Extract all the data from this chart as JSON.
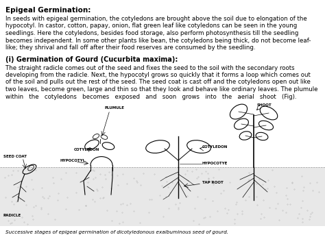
{
  "title": "Epigeal Germination:",
  "para1_lines": [
    "In seeds with epigeal germination, the cotyledons are brought above the soil due to elongation of the",
    "hypocotyl. In castor, cotton, papay, onion, flat green leaf like cotyledons can be seen in the young",
    "seedlings. Here the cotyledons, besides food storage, also perform photosynthesis till the seedling",
    "becomes independent. In some other plants like bean, the cotyledons being thick, do not become leaf-",
    "like; they shrival and fall off after their food reserves are consumed by the seedling."
  ],
  "subtitle": "(i) Germination of Gourd (Cucurbita maxima):",
  "para2_lines": [
    "The straight radicle comes out of the seed and fixes the seed to the soil with the secondary roots",
    "developing from the radicle. Next, the hypocotyl grows so quickly that it forms a loop which comes out",
    "of the soil and pulls out the rest of the seed. The seed coat is cast off and the cotyledons open out like",
    "two leaves, become green, large and thin so that they look and behave like ordinary leaves. The plumule",
    "within   the   cotyledons   becomes   exposed   and   soon   grows   into   the   aerial   shoot   (Fig)."
  ],
  "caption": "Successive stages of epigeal germination of dicotyledonous exalbuminous seed of gourd.",
  "bg_color": "#ffffff",
  "text_color": "#000000",
  "font_size_title": 7.5,
  "font_size_body": 6.2,
  "font_size_subtitle": 7.0,
  "font_size_caption": 5.2,
  "font_size_label": 4.0
}
